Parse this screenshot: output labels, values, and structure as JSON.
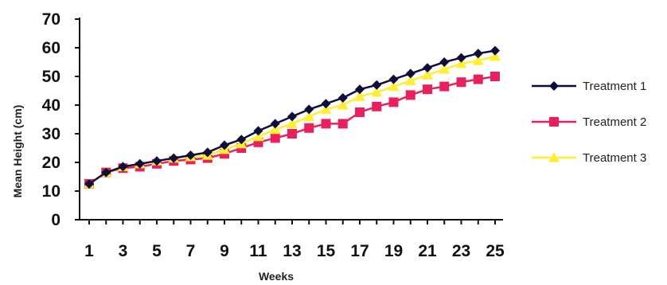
{
  "chart_data": {
    "type": "line",
    "title": "",
    "xlabel": "Weeks",
    "ylabel": "Mean Height (cm)",
    "xlim": [
      1,
      25
    ],
    "ylim": [
      0,
      70
    ],
    "y_ticks": [
      0,
      10,
      20,
      30,
      40,
      50,
      60,
      70
    ],
    "x_tick_labels": [
      1,
      3,
      5,
      7,
      9,
      11,
      13,
      15,
      17,
      19,
      21,
      23,
      25
    ],
    "x": [
      1,
      2,
      3,
      4,
      5,
      6,
      7,
      8,
      9,
      10,
      11,
      12,
      13,
      14,
      15,
      16,
      17,
      18,
      19,
      20,
      21,
      22,
      23,
      24,
      25
    ],
    "grid": false,
    "legend_position": "right",
    "series": [
      {
        "name": "Treatment 1",
        "color": "#0d0d3a",
        "marker": "diamond",
        "values": [
          12.5,
          16.5,
          18.5,
          19.5,
          20.5,
          21.5,
          22.5,
          23.5,
          26,
          28,
          31,
          33.5,
          36,
          38.5,
          40.5,
          42.5,
          45.5,
          47,
          49,
          51,
          53,
          55,
          56.5,
          58,
          59
        ]
      },
      {
        "name": "Treatment 2",
        "color": "#e8215e",
        "marker": "square",
        "values": [
          12.5,
          16.5,
          18,
          18.5,
          19.5,
          20.5,
          21,
          21.5,
          23,
          25,
          27,
          28.5,
          30,
          32,
          33.5,
          33.5,
          37.5,
          39.5,
          41,
          43.5,
          45.5,
          46.5,
          48,
          49,
          50
        ]
      },
      {
        "name": "Treatment 3",
        "color": "#ffee33",
        "marker": "triangle",
        "values": [
          12.5,
          16.5,
          18.5,
          19.5,
          20.5,
          21.5,
          22,
          22.5,
          24.5,
          26.5,
          29,
          31.5,
          33.5,
          36,
          38.5,
          40,
          43,
          44.5,
          46.5,
          48.5,
          50.5,
          52.5,
          54.5,
          55.5,
          57
        ]
      }
    ]
  }
}
